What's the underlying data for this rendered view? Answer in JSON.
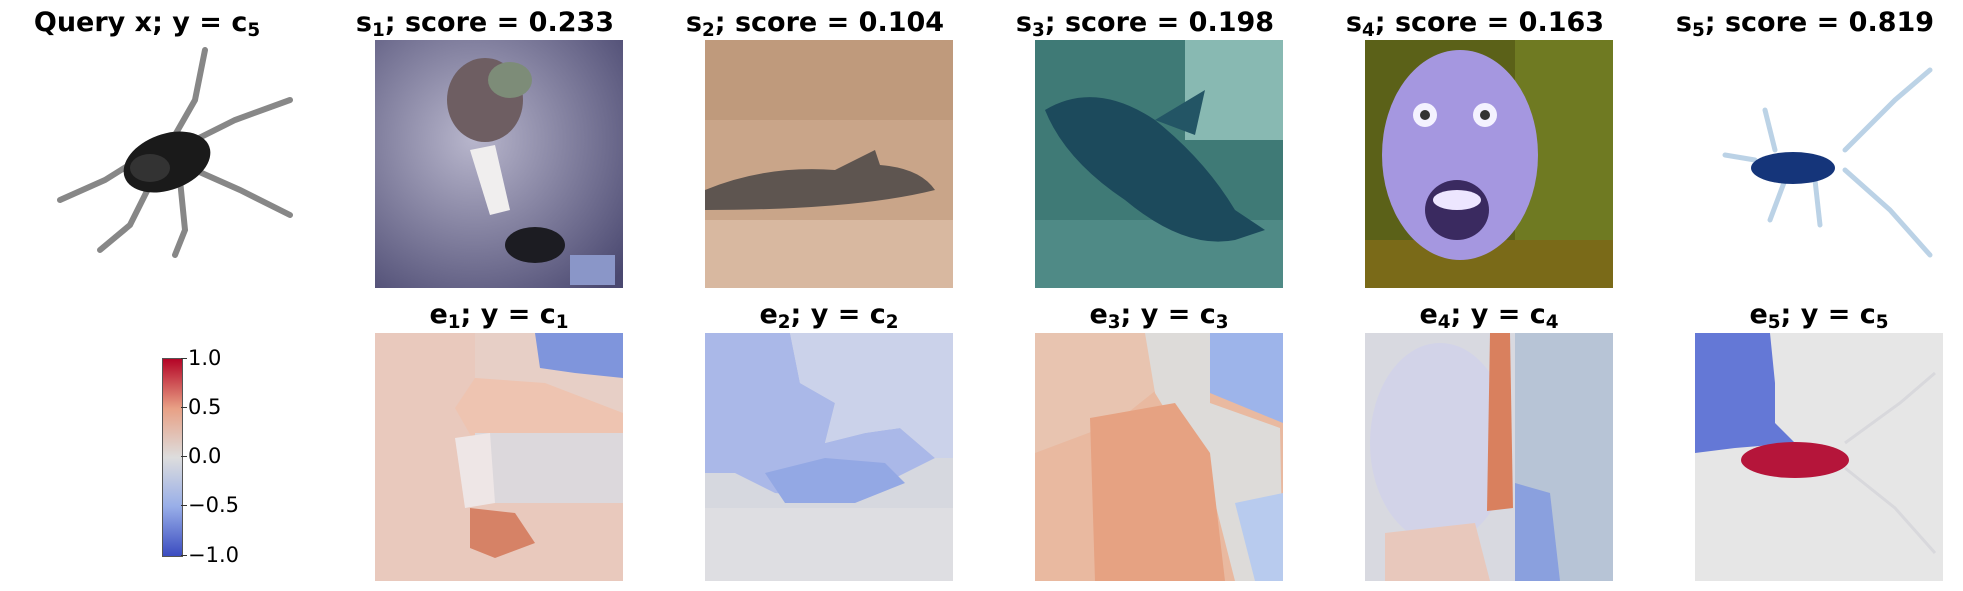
{
  "query": {
    "title_main": "Query x; y = c",
    "title_sub": "5"
  },
  "samples": [
    {
      "name": "s",
      "index": "1",
      "score_text": "; score = 0.233",
      "explanation_title": "e",
      "class_text": "; y = c",
      "class_sub": "1"
    },
    {
      "name": "s",
      "index": "2",
      "score_text": "; score = 0.104",
      "explanation_title": "e",
      "class_text": "; y = c",
      "class_sub": "2"
    },
    {
      "name": "s",
      "index": "3",
      "score_text": "; score = 0.198",
      "explanation_title": "e",
      "class_text": "; y = c",
      "class_sub": "3"
    },
    {
      "name": "s",
      "index": "4",
      "score_text": "; score = 0.163",
      "explanation_title": "e",
      "class_text": "; y = c",
      "class_sub": "4"
    },
    {
      "name": "s",
      "index": "5",
      "score_text": "; score = 0.819",
      "explanation_title": "e",
      "class_text": "; y = c",
      "class_sub": "5"
    }
  ],
  "colorbar": {
    "ticks": [
      "1.0",
      "0.5",
      "0.0",
      "−0.5",
      "−1.0"
    ],
    "range": [
      -1.0,
      1.0
    ],
    "colors": {
      "high": "#b40426",
      "mid": "#dddddd",
      "low": "#3b4cc0"
    }
  }
}
